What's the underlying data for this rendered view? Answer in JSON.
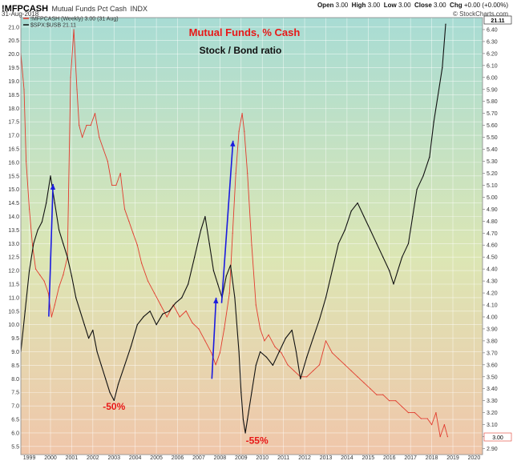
{
  "header": {
    "symbol": "!MFPCASH",
    "description": "Mutual Funds Pct Cash",
    "exchange": "INDX",
    "date": "31-Aug-2018",
    "ohlc_open_label": "Open",
    "ohlc_open": "3.00",
    "ohlc_high_label": "High",
    "ohlc_high": "3.00",
    "ohlc_low_label": "Low",
    "ohlc_low": "3.00",
    "ohlc_close_label": "Close",
    "ohlc_close": "3.00",
    "ohlc_chg_label": "Chg",
    "ohlc_chg": "+0.00 (+0.00%)",
    "logo": "© StockCharts.com"
  },
  "chart_data": {
    "type": "line",
    "title": "Mutual Funds, % Cash",
    "subtitle": "Stock / Bond ratio",
    "legend": [
      "!MFPCASH (Weekly) 3.00 (31 Aug)",
      "$SPX:$USB 21.11"
    ],
    "colors": {
      "cash": "#e23b2e",
      "ratio": "#111111",
      "arrow": "#1a1ae0",
      "annotation": "#e81818",
      "title": "#e81818",
      "bg_top": "#a8dcd4",
      "bg_mid": "#dce6b4",
      "bg_bottom": "#f0c6aa",
      "grid": "#ffffff"
    },
    "x_ticks": [
      "1999",
      "2000",
      "2001",
      "2002",
      "2003",
      "2004",
      "2005",
      "2006",
      "2007",
      "2008",
      "2009",
      "2010",
      "2011",
      "2012",
      "2013",
      "2014",
      "2015",
      "2016",
      "2017",
      "2018",
      "2019",
      "2020"
    ],
    "xlim": [
      1998.6,
      2020.4
    ],
    "right_axis_ticks": [
      "2.90",
      "3.00",
      "3.10",
      "3.20",
      "3.30",
      "3.40",
      "3.50",
      "3.60",
      "3.70",
      "3.80",
      "3.90",
      "4.00",
      "4.10",
      "4.20",
      "4.30",
      "4.40",
      "4.50",
      "4.60",
      "4.70",
      "4.80",
      "4.90",
      "5.00",
      "5.10",
      "5.20",
      "5.30",
      "5.40",
      "5.50",
      "5.60",
      "5.70",
      "5.80",
      "5.90",
      "6.00",
      "6.10",
      "6.20",
      "6.30",
      "6.40"
    ],
    "right_ylim": [
      2.85,
      6.5
    ],
    "left_axis_ticks": [
      "5.5",
      "6.0",
      "6.5",
      "7.0",
      "7.5",
      "8.0",
      "8.5",
      "9.0",
      "9.5",
      "10.0",
      "10.5",
      "11.0",
      "11.5",
      "12.0",
      "12.5",
      "13.0",
      "13.5",
      "14.0",
      "14.5",
      "15.0",
      "15.5",
      "16.0",
      "16.5",
      "17.0",
      "17.5",
      "18.0",
      "18.5",
      "19.0",
      "19.5",
      "20.0",
      "20.5",
      "21.0"
    ],
    "left_ylim": [
      5.2,
      21.35
    ],
    "last_value_badges": [
      "21.11",
      "3.00"
    ],
    "series": [
      {
        "name": "Mutual Funds % Cash",
        "axis": "right",
        "x": [
          1998.6,
          1998.75,
          1998.85,
          1999.0,
          1999.15,
          1999.3,
          1999.5,
          1999.7,
          1999.9,
          2000.05,
          2000.2,
          2000.4,
          2000.6,
          2000.8,
          2000.95,
          2001.1,
          2001.25,
          2001.35,
          2001.5,
          2001.7,
          2001.9,
          2002.1,
          2002.3,
          2002.5,
          2002.7,
          2002.9,
          2003.1,
          2003.3,
          2003.5,
          2003.7,
          2003.9,
          2004.1,
          2004.3,
          2004.6,
          2004.9,
          2005.2,
          2005.5,
          2005.8,
          2006.1,
          2006.4,
          2006.7,
          2007.0,
          2007.3,
          2007.6,
          2007.8,
          2008.0,
          2008.2,
          2008.45,
          2008.6,
          2008.75,
          2008.9,
          2009.05,
          2009.15,
          2009.3,
          2009.5,
          2009.7,
          2009.9,
          2010.1,
          2010.3,
          2010.6,
          2010.9,
          2011.2,
          2011.5,
          2011.8,
          2012.1,
          2012.4,
          2012.7,
          2013.0,
          2013.3,
          2013.6,
          2013.9,
          2014.2,
          2014.5,
          2014.8,
          2015.1,
          2015.4,
          2015.7,
          2016.0,
          2016.3,
          2016.6,
          2016.9,
          2017.2,
          2017.5,
          2017.8,
          2018.0,
          2018.2,
          2018.4,
          2018.6,
          2018.75
        ],
        "values": [
          6.2,
          5.9,
          5.3,
          4.9,
          4.6,
          4.4,
          4.35,
          4.3,
          4.2,
          4.0,
          4.1,
          4.25,
          4.35,
          4.5,
          6.0,
          6.4,
          5.9,
          5.6,
          5.5,
          5.6,
          5.6,
          5.7,
          5.5,
          5.4,
          5.3,
          5.1,
          5.1,
          5.2,
          4.9,
          4.8,
          4.7,
          4.6,
          4.45,
          4.3,
          4.2,
          4.1,
          4.0,
          4.1,
          4.0,
          4.05,
          3.95,
          3.9,
          3.8,
          3.7,
          3.6,
          3.7,
          3.9,
          4.2,
          4.7,
          5.2,
          5.55,
          5.7,
          5.55,
          5.2,
          4.6,
          4.1,
          3.9,
          3.8,
          3.85,
          3.75,
          3.7,
          3.6,
          3.55,
          3.5,
          3.5,
          3.55,
          3.6,
          3.8,
          3.7,
          3.65,
          3.6,
          3.55,
          3.5,
          3.45,
          3.4,
          3.35,
          3.35,
          3.3,
          3.3,
          3.25,
          3.2,
          3.2,
          3.15,
          3.15,
          3.1,
          3.2,
          3.0,
          3.1,
          3.0
        ]
      },
      {
        "name": "$SPX:$USB",
        "axis": "left",
        "x": [
          1998.6,
          1998.8,
          1999.0,
          1999.2,
          1999.4,
          1999.6,
          1999.8,
          2000.0,
          2000.2,
          2000.4,
          2000.6,
          2000.8,
          2001.0,
          2001.2,
          2001.4,
          2001.6,
          2001.8,
          2002.0,
          2002.2,
          2002.4,
          2002.6,
          2002.8,
          2003.0,
          2003.2,
          2003.5,
          2003.8,
          2004.1,
          2004.4,
          2004.7,
          2005.0,
          2005.3,
          2005.6,
          2005.9,
          2006.2,
          2006.5,
          2006.8,
          2007.1,
          2007.3,
          2007.5,
          2007.7,
          2007.9,
          2008.1,
          2008.3,
          2008.5,
          2008.7,
          2008.9,
          2009.0,
          2009.1,
          2009.2,
          2009.3,
          2009.5,
          2009.7,
          2009.9,
          2010.2,
          2010.5,
          2010.8,
          2011.1,
          2011.4,
          2011.6,
          2011.8,
          2012.1,
          2012.4,
          2012.7,
          2013.0,
          2013.3,
          2013.6,
          2013.9,
          2014.2,
          2014.5,
          2014.8,
          2015.1,
          2015.4,
          2015.7,
          2016.0,
          2016.2,
          2016.4,
          2016.6,
          2016.9,
          2017.1,
          2017.3,
          2017.6,
          2017.9,
          2018.1,
          2018.3,
          2018.5,
          2018.66
        ],
        "values": [
          9.0,
          10.5,
          12.0,
          13.0,
          13.5,
          13.8,
          14.5,
          15.5,
          14.5,
          13.5,
          13.0,
          12.5,
          11.8,
          11.0,
          10.5,
          10.0,
          9.5,
          9.8,
          9.0,
          8.5,
          8.0,
          7.5,
          7.2,
          7.8,
          8.5,
          9.2,
          10.0,
          10.3,
          10.5,
          10.0,
          10.4,
          10.5,
          10.8,
          11.0,
          11.5,
          12.5,
          13.5,
          14.0,
          13.0,
          12.0,
          11.5,
          11.0,
          11.8,
          12.2,
          11.0,
          9.0,
          7.5,
          6.5,
          6.0,
          6.5,
          7.5,
          8.5,
          9.0,
          8.8,
          8.5,
          9.0,
          9.5,
          9.8,
          9.0,
          8.0,
          8.8,
          9.5,
          10.2,
          11.0,
          12.0,
          13.0,
          13.5,
          14.2,
          14.5,
          14.0,
          13.5,
          13.0,
          12.5,
          12.0,
          11.5,
          12.0,
          12.5,
          13.0,
          14.0,
          15.0,
          15.5,
          16.2,
          17.5,
          18.5,
          19.5,
          21.11
        ]
      }
    ],
    "arrows": [
      {
        "x": [
          1999.92,
          2000.12
        ],
        "y_left": [
          10.3,
          15.2
        ]
      },
      {
        "x": [
          2007.62,
          2007.82
        ],
        "y_left": [
          8.0,
          11.0
        ]
      },
      {
        "x": [
          2008.08,
          2008.62
        ],
        "y_left": [
          10.8,
          16.8
        ]
      }
    ],
    "annotations": [
      {
        "text": "-50%",
        "x": 2003.0,
        "y_left": 6.85
      },
      {
        "text": "-55%",
        "x": 2009.75,
        "y_left": 5.6
      }
    ]
  }
}
